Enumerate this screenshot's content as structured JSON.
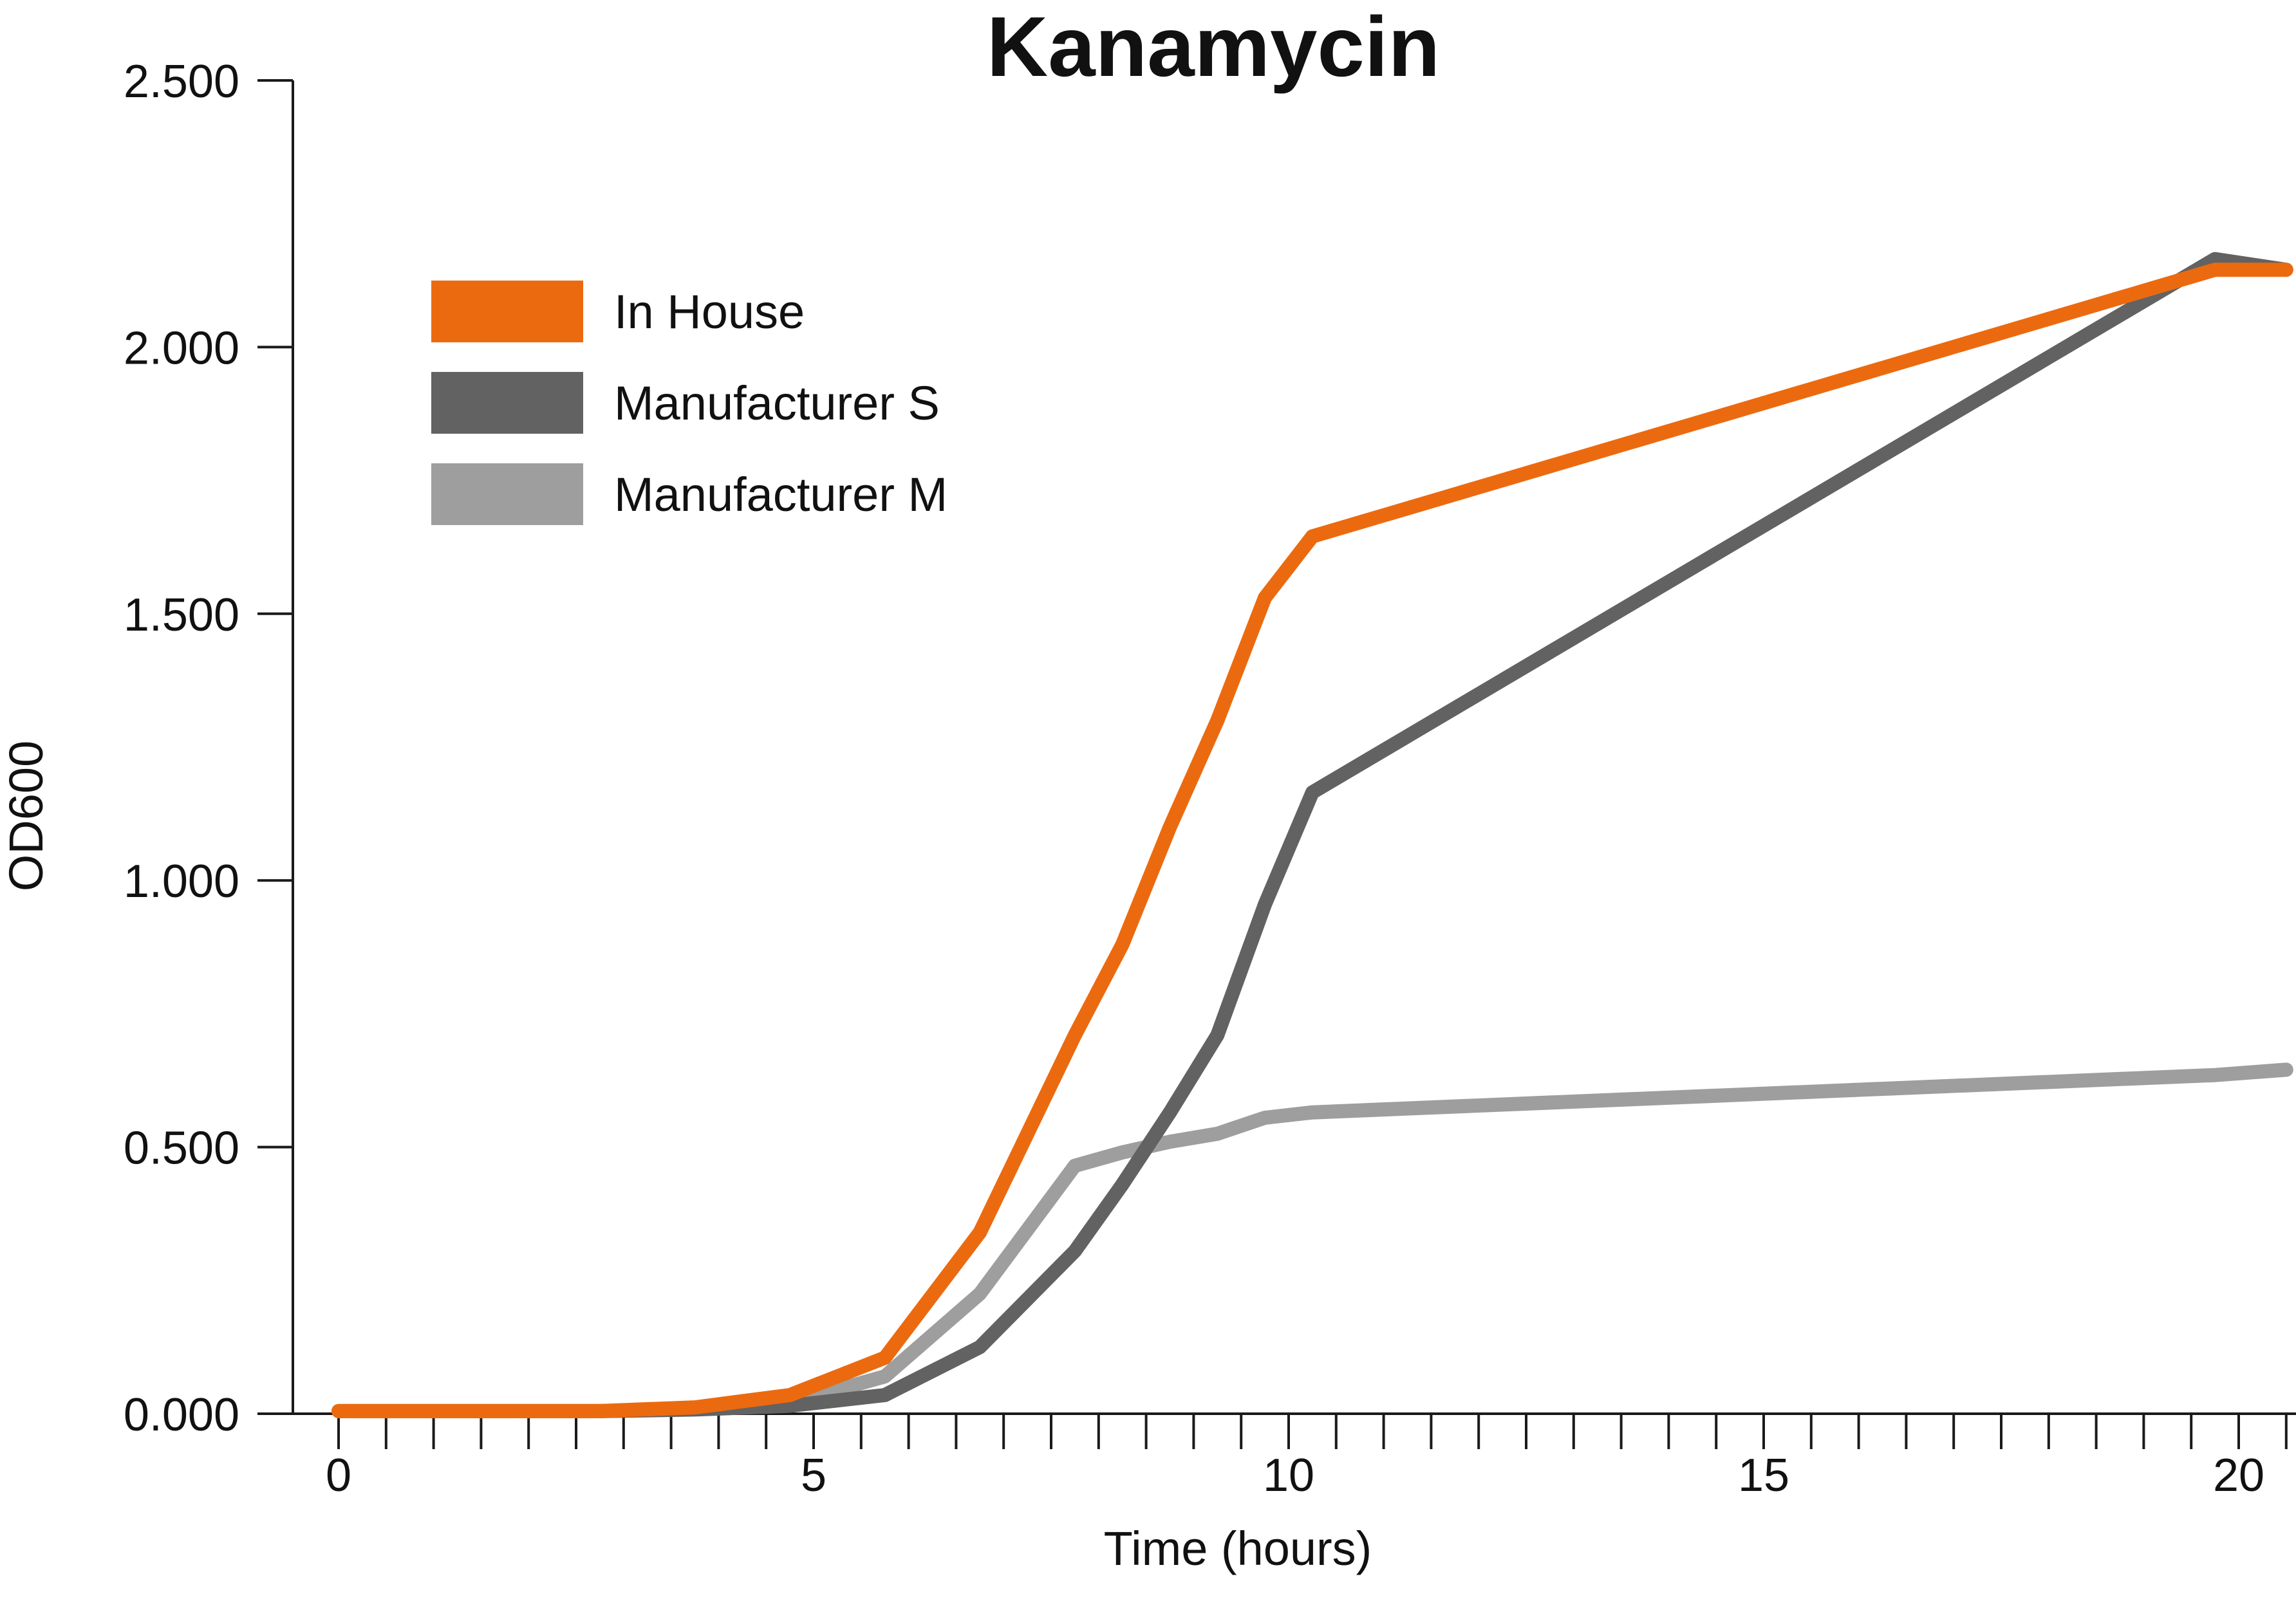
{
  "chart_data": {
    "type": "line",
    "title": "Kanamycin",
    "xlabel": "Time (hours)",
    "ylabel": "OD600",
    "xlim": [
      -0.5,
      20.5
    ],
    "ylim": [
      0,
      2.5
    ],
    "x_ticks": [
      0,
      5,
      10,
      15,
      20
    ],
    "x_tick_labels": [
      "0",
      "5",
      "10",
      "15",
      "20"
    ],
    "x_minor_step": 0.5,
    "y_ticks": [
      0,
      0.5,
      1,
      1.5,
      2,
      2.5
    ],
    "y_tick_labels": [
      "0.000",
      "0.500",
      "1.000",
      "1.500",
      "2.000",
      "2.500"
    ],
    "grid": false,
    "legend_position": "top-left",
    "series": [
      {
        "name": "In House",
        "color": "#ec6a0f",
        "points": [
          [
            0,
            0.005
          ],
          [
            1,
            0.005
          ],
          [
            2,
            0.005
          ],
          [
            2.75,
            0.005
          ],
          [
            3.75,
            0.012
          ],
          [
            4.75,
            0.035
          ],
          [
            5.75,
            0.105
          ],
          [
            6.75,
            0.34
          ],
          [
            7.75,
            0.71
          ],
          [
            8.25,
            0.88
          ],
          [
            8.75,
            1.1
          ],
          [
            9.25,
            1.3
          ],
          [
            9.75,
            1.53
          ],
          [
            10.25,
            1.645
          ],
          [
            19.75,
            2.145
          ],
          [
            20.5,
            2.145
          ]
        ]
      },
      {
        "name": "Manufacturer S",
        "color": "#636262",
        "points": [
          [
            0,
            0.005
          ],
          [
            2.75,
            0.005
          ],
          [
            3.75,
            0.008
          ],
          [
            4.75,
            0.015
          ],
          [
            5.75,
            0.035
          ],
          [
            6.75,
            0.125
          ],
          [
            7.75,
            0.305
          ],
          [
            8.25,
            0.43
          ],
          [
            8.75,
            0.565
          ],
          [
            9.25,
            0.71
          ],
          [
            9.75,
            0.955
          ],
          [
            10.25,
            1.165
          ],
          [
            19.75,
            2.165
          ],
          [
            20.5,
            2.145
          ]
        ]
      },
      {
        "name": "Manufacturer M",
        "color": "#9e9e9e",
        "points": [
          [
            0,
            0.005
          ],
          [
            2.75,
            0.005
          ],
          [
            3.75,
            0.01
          ],
          [
            4.75,
            0.02
          ],
          [
            5.75,
            0.07
          ],
          [
            6.75,
            0.225
          ],
          [
            7.75,
            0.465
          ],
          [
            8.25,
            0.49
          ],
          [
            8.75,
            0.51
          ],
          [
            9.25,
            0.525
          ],
          [
            9.75,
            0.555
          ],
          [
            10.25,
            0.565
          ],
          [
            19.75,
            0.635
          ],
          [
            20.5,
            0.645
          ]
        ]
      }
    ]
  }
}
